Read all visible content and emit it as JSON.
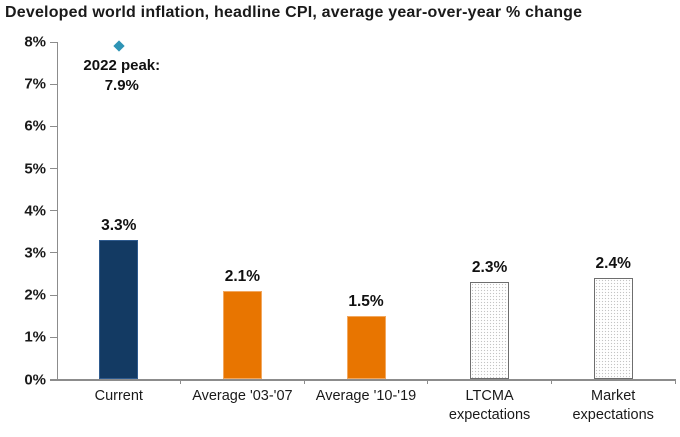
{
  "chart_data": {
    "type": "bar",
    "title": "Developed world inflation, headline CPI, average year-over-year % change",
    "categories": [
      "Current",
      "Average '03-'07",
      "Average '10-'19",
      "LTCMA expectations",
      "Market expectations"
    ],
    "category_label_lines": [
      [
        "Current"
      ],
      [
        "Average '03-'07"
      ],
      [
        "Average '10-'19"
      ],
      [
        "LTCMA",
        "expectations"
      ],
      [
        "Market",
        "expectations"
      ]
    ],
    "values": [
      3.3,
      2.1,
      1.5,
      2.3,
      2.4
    ],
    "value_labels": [
      "3.3%",
      "2.1%",
      "1.5%",
      "2.3%",
      "2.4%"
    ],
    "bar_styles": [
      "navy",
      "orange",
      "orange",
      "dotted",
      "dotted"
    ],
    "ylim": [
      0,
      8
    ],
    "ytick_step": 1,
    "ytick_labels": [
      "0%",
      "1%",
      "2%",
      "3%",
      "4%",
      "5%",
      "6%",
      "7%",
      "8%"
    ],
    "grid": false,
    "legend": false,
    "annotation": {
      "marker": "diamond",
      "value": 7.9,
      "category_index": 0,
      "line1": "2022 peak:",
      "line2": "7.9%"
    },
    "colors": {
      "navy": "#133a63",
      "navy_border": "#2f5b8f",
      "orange": "#e87500",
      "orange_border": "#f2a860",
      "dotted_border": "#6e6e6e",
      "diamond": "#2e94b5",
      "axis": "#8c8c8c",
      "text": "#1a1a1a"
    }
  }
}
